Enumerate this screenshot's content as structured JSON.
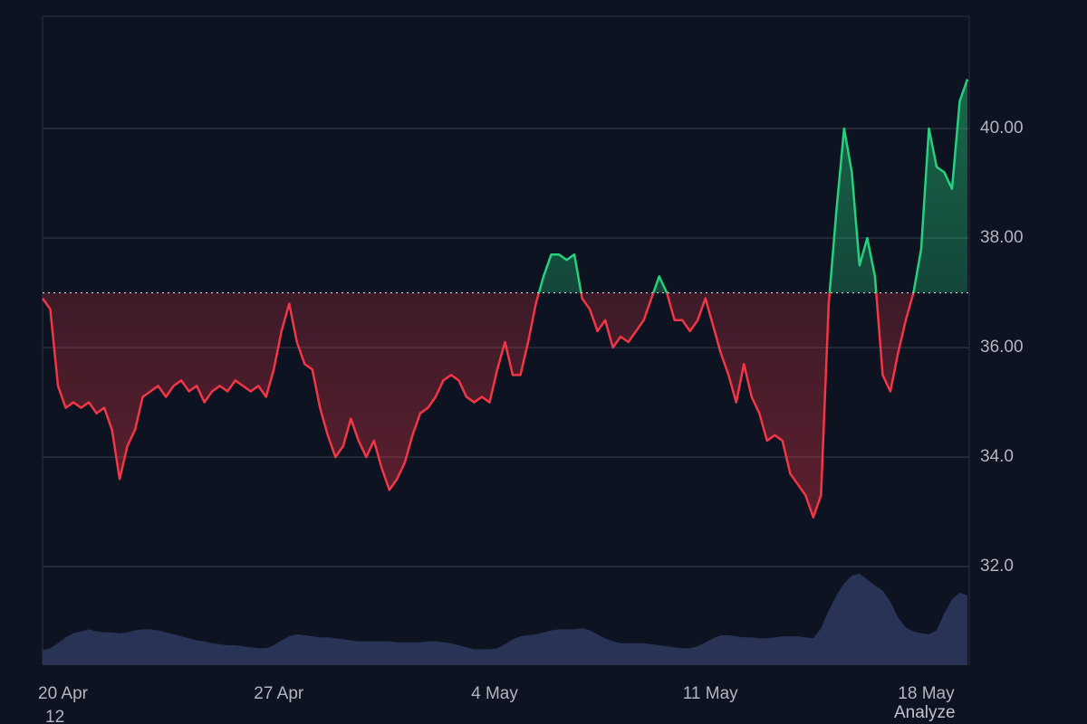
{
  "chart_data": {
    "type": "baseline",
    "baseline": 37,
    "categories": [
      null,
      null,
      null,
      "20 Apr",
      null,
      null,
      null,
      null,
      null,
      null,
      null,
      null,
      null,
      null,
      null,
      null,
      null,
      null,
      null,
      null,
      null,
      null,
      null,
      null,
      null,
      null,
      null,
      null,
      null,
      null,
      null,
      "27 Apr",
      null,
      null,
      null,
      null,
      null,
      null,
      null,
      null,
      null,
      null,
      null,
      null,
      null,
      null,
      null,
      null,
      null,
      null,
      null,
      null,
      null,
      null,
      null,
      null,
      null,
      null,
      null,
      "4 May",
      null,
      null,
      null,
      null,
      null,
      null,
      null,
      null,
      null,
      null,
      null,
      null,
      null,
      null,
      null,
      null,
      null,
      null,
      null,
      null,
      null,
      null,
      null,
      null,
      null,
      null,
      null,
      "11 May",
      null,
      null,
      null,
      null,
      null,
      null,
      null,
      null,
      null,
      null,
      null,
      null,
      null,
      null,
      null,
      null,
      null,
      null,
      null,
      null,
      null,
      null,
      null,
      null,
      null,
      null,
      null,
      "18 May",
      null,
      null,
      null,
      null,
      null
    ],
    "series": [
      {
        "color_above": "#26d07c",
        "color_below": "#f23645",
        "values": [
          36.9,
          36.7,
          35.3,
          34.9,
          35.0,
          34.9,
          35.0,
          34.8,
          34.9,
          34.5,
          33.6,
          34.2,
          34.5,
          35.1,
          35.2,
          35.3,
          35.1,
          35.3,
          35.4,
          35.2,
          35.3,
          35.0,
          35.2,
          35.3,
          35.2,
          35.4,
          35.3,
          35.2,
          35.3,
          35.1,
          35.6,
          36.3,
          36.8,
          36.1,
          35.7,
          35.6,
          34.9,
          34.4,
          34.0,
          34.2,
          34.7,
          34.3,
          34.0,
          34.3,
          33.8,
          33.4,
          33.6,
          33.9,
          34.4,
          34.8,
          34.9,
          35.1,
          35.4,
          35.5,
          35.4,
          35.1,
          35.0,
          35.1,
          35.0,
          35.6,
          36.1,
          35.5,
          35.5,
          36.1,
          36.8,
          37.3,
          37.7,
          37.7,
          37.6,
          37.7,
          36.9,
          36.7,
          36.3,
          36.5,
          36.0,
          36.2,
          36.1,
          36.3,
          36.5,
          36.9,
          37.3,
          37.0,
          36.5,
          36.5,
          36.3,
          36.5,
          36.9,
          36.4,
          35.9,
          35.5,
          35.0,
          35.7,
          35.1,
          34.8,
          34.3,
          34.4,
          34.3,
          33.7,
          33.5,
          33.3,
          32.9,
          33.3,
          36.8,
          38.5,
          40.0,
          39.2,
          37.5,
          38.0,
          37.3,
          35.5,
          35.2,
          35.9,
          36.5,
          37.0,
          37.8,
          40.0,
          39.3,
          39.2,
          38.9,
          40.5,
          40.9
        ]
      }
    ],
    "volume": {
      "color": "#2e3a5e",
      "values": [
        15,
        17,
        22,
        28,
        32,
        34,
        36,
        34,
        33,
        33,
        32,
        33,
        35,
        36,
        36,
        35,
        33,
        31,
        29,
        27,
        25,
        24,
        22,
        21,
        20,
        20,
        19,
        18,
        17,
        17,
        20,
        25,
        29,
        31,
        30,
        29,
        28,
        28,
        27,
        26,
        25,
        24,
        24,
        24,
        24,
        24,
        23,
        23,
        23,
        23,
        24,
        24,
        23,
        22,
        20,
        18,
        16,
        16,
        16,
        17,
        21,
        26,
        29,
        30,
        31,
        33,
        35,
        36,
        36,
        36,
        37,
        35,
        31,
        27,
        24,
        22,
        22,
        22,
        22,
        21,
        20,
        19,
        18,
        17,
        17,
        19,
        23,
        27,
        30,
        30,
        29,
        28,
        28,
        27,
        27,
        28,
        29,
        29,
        29,
        28,
        27,
        37,
        55,
        70,
        82,
        90,
        92,
        86,
        80,
        75,
        64,
        48,
        38,
        34,
        32,
        31,
        35,
        52,
        66,
        73,
        70
      ]
    },
    "ylim": [
      30.2,
      42.05
    ],
    "y2lim": [
      0,
      100
    ],
    "yticks": [
      {
        "value": 32,
        "label": "32.0"
      },
      {
        "value": 34,
        "label": "34.0"
      },
      {
        "value": 36,
        "label": "36.00"
      },
      {
        "value": 38,
        "label": "38.00"
      },
      {
        "value": 40,
        "label": "40.00"
      }
    ],
    "grid": true,
    "annotations": [
      "12",
      "Analyze"
    ]
  }
}
